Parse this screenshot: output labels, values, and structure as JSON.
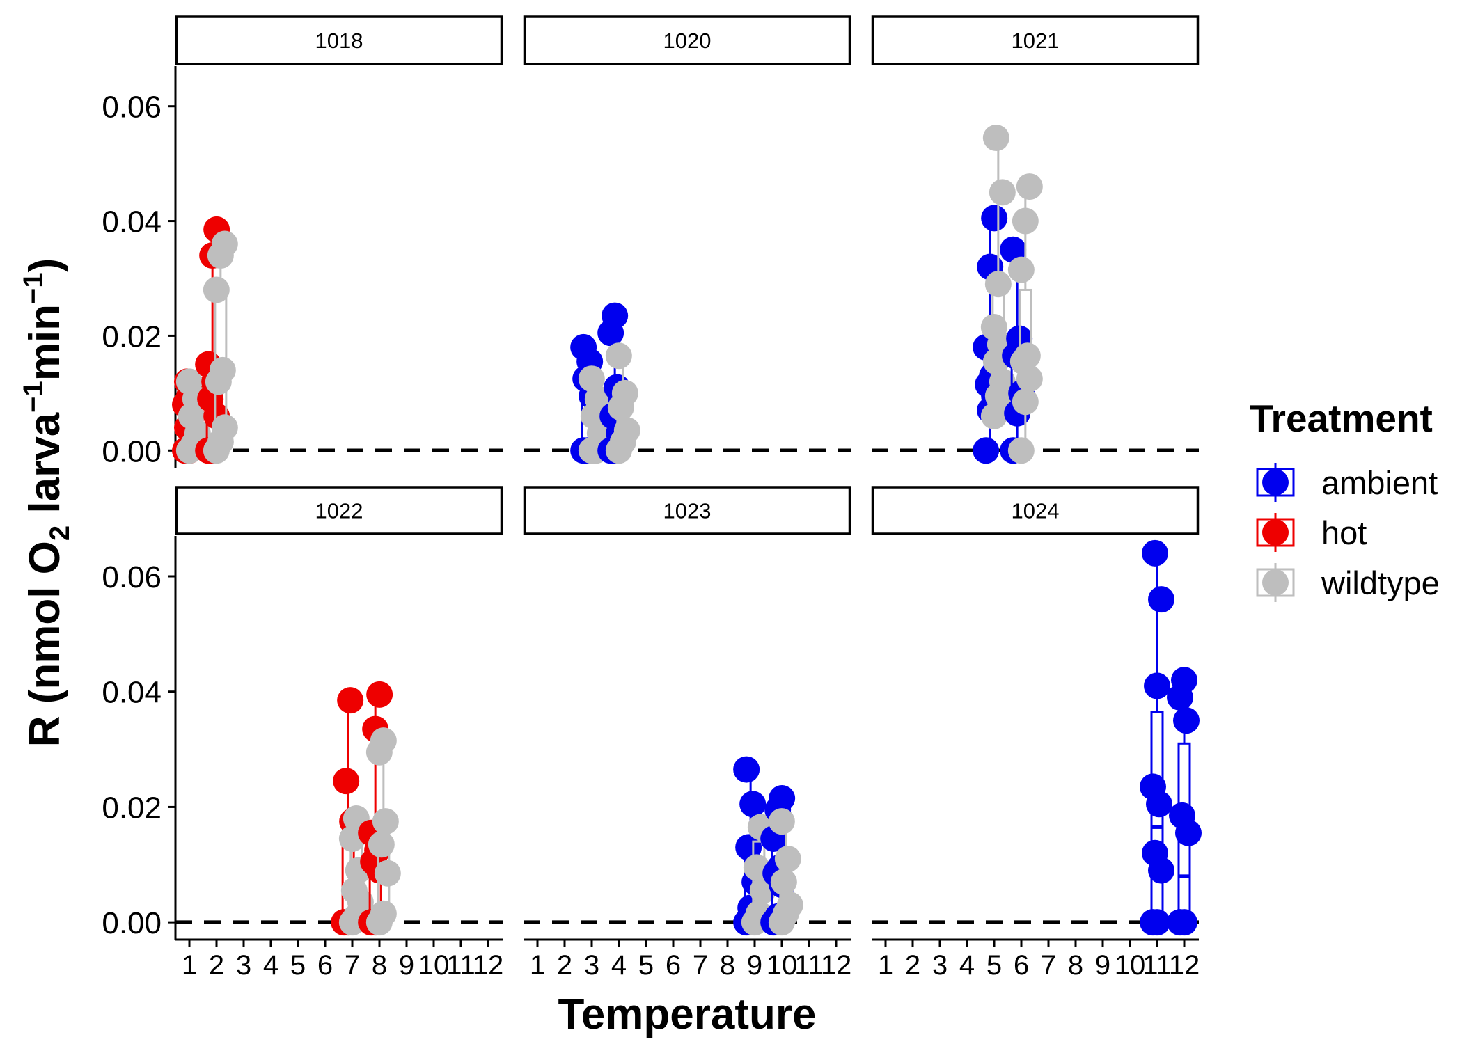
{
  "chart_data": {
    "type": "boxplot-with-points (faceted)",
    "xlabel": "Temperature",
    "ylabel_parts": [
      "R (nmol O",
      "2",
      " larva",
      "−1",
      "min",
      "−1",
      ")"
    ],
    "ylim": [
      -0.003,
      0.067
    ],
    "yticks": [
      0.0,
      0.02,
      0.04,
      0.06
    ],
    "ytick_labels": [
      "0.00",
      "0.02",
      "0.04",
      "0.06"
    ],
    "xticks": [
      1,
      2,
      3,
      4,
      5,
      6,
      7,
      8,
      9,
      10,
      11,
      12
    ],
    "xtick_labels": [
      "1",
      "2",
      "3",
      "4",
      "5",
      "6",
      "7",
      "8",
      "9",
      "10",
      "11",
      "12"
    ],
    "reference_line": {
      "y": 0.0,
      "style": "dashed"
    },
    "legend": {
      "title": "Treatment",
      "placement": "right",
      "entries": [
        {
          "name": "ambient",
          "color": "#0000ee"
        },
        {
          "name": "hot",
          "color": "#ee0000"
        },
        {
          "name": "wildtype",
          "color": "#bebebe"
        }
      ]
    },
    "panels": [
      {
        "id": "1018",
        "groups": [
          {
            "treatment": "hot",
            "x": 1,
            "box": [
              0.0,
              0.0015,
              0.006,
              0.011,
              0.012
            ],
            "points": [
              0.0,
              0.0,
              0.0015,
              0.004,
              0.006,
              0.008,
              0.0095,
              0.011,
              0.012
            ]
          },
          {
            "treatment": "wildtype",
            "x": 1.15,
            "box": [
              0.0,
              0.001,
              0.004,
              0.008,
              0.012
            ],
            "points": [
              0.0,
              0.001,
              0.003,
              0.006,
              0.009,
              0.012
            ]
          },
          {
            "treatment": "hot",
            "x": 1.85,
            "box": [
              0.0,
              0.002,
              0.008,
              0.014,
              0.0385
            ],
            "points": [
              0.0,
              0.0,
              0.006,
              0.009,
              0.012,
              0.015,
              0.034,
              0.0385
            ]
          },
          {
            "treatment": "wildtype",
            "x": 2.15,
            "box": [
              0.0,
              0.002,
              0.012,
              0.028,
              0.036
            ],
            "points": [
              0.0,
              0.0015,
              0.004,
              0.012,
              0.014,
              0.028,
              0.034,
              0.036
            ]
          }
        ]
      },
      {
        "id": "1020",
        "groups": [
          {
            "treatment": "ambient",
            "x": 2.85,
            "box": [
              0.0,
              0.0,
              0.007,
              0.0125,
              0.018
            ],
            "points": [
              0.0,
              0.0,
              0.0095,
              0.0125,
              0.0155,
              0.018
            ]
          },
          {
            "treatment": "wildtype",
            "x": 3.15,
            "box": [
              0.0,
              0.0,
              0.003,
              0.009,
              0.0125
            ],
            "points": [
              0.0,
              0.0,
              0.003,
              0.006,
              0.009,
              0.0125
            ]
          },
          {
            "treatment": "ambient",
            "x": 3.85,
            "box": [
              0.0,
              0.0,
              0.003,
              0.011,
              0.0235
            ],
            "points": [
              0.0,
              0.0,
              0.003,
              0.006,
              0.011,
              0.0205,
              0.0235
            ]
          },
          {
            "treatment": "wildtype",
            "x": 4.15,
            "box": [
              0.0,
              0.0015,
              0.005,
              0.01,
              0.0165
            ],
            "points": [
              0.0,
              0.0015,
              0.0035,
              0.0075,
              0.01,
              0.0165
            ]
          }
        ]
      },
      {
        "id": "1021",
        "groups": [
          {
            "treatment": "ambient",
            "x": 4.85,
            "box": [
              0.0,
              0.008,
              0.0115,
              0.018,
              0.0405
            ],
            "points": [
              0.0,
              0.007,
              0.0095,
              0.0115,
              0.013,
              0.018,
              0.032,
              0.0405
            ]
          },
          {
            "treatment": "wildtype",
            "x": 5.15,
            "box": [
              0.006,
              0.012,
              0.018,
              0.0285,
              0.0545
            ],
            "points": [
              0.006,
              0.0095,
              0.012,
              0.0155,
              0.0185,
              0.0215,
              0.029,
              0.045,
              0.0545
            ]
          },
          {
            "treatment": "ambient",
            "x": 5.85,
            "box": [
              0.0,
              0.007,
              0.01,
              0.017,
              0.035
            ],
            "points": [
              0.0,
              0.0065,
              0.01,
              0.0165,
              0.0195,
              0.035
            ]
          },
          {
            "treatment": "wildtype",
            "x": 6.15,
            "box": [
              0.0,
              0.012,
              0.0155,
              0.028,
              0.046
            ],
            "points": [
              0.0,
              0.0085,
              0.0125,
              0.0155,
              0.0165,
              0.0315,
              0.04,
              0.046
            ]
          }
        ]
      },
      {
        "id": "1022",
        "groups": [
          {
            "treatment": "hot",
            "x": 6.85,
            "box": [
              0.0,
              0.0,
              0.0,
              0.013,
              0.0385
            ],
            "points": [
              0.0,
              0.0,
              0.0175,
              0.0245,
              0.0385
            ]
          },
          {
            "treatment": "wildtype",
            "x": 7.15,
            "box": [
              0.0,
              0.001,
              0.0055,
              0.0145,
              0.018
            ],
            "points": [
              0.0,
              0.001,
              0.0035,
              0.0055,
              0.009,
              0.0145,
              0.018
            ]
          },
          {
            "treatment": "hot",
            "x": 7.85,
            "box": [
              0.0,
              0.001,
              0.009,
              0.0155,
              0.0395
            ],
            "points": [
              0.0,
              0.0,
              0.009,
              0.0105,
              0.0125,
              0.0155,
              0.0335,
              0.0395
            ]
          },
          {
            "treatment": "wildtype",
            "x": 8.15,
            "box": [
              0.0,
              0.0015,
              0.0085,
              0.0155,
              0.0315
            ],
            "points": [
              0.0,
              0.0015,
              0.0085,
              0.0135,
              0.0175,
              0.0295,
              0.0315
            ]
          }
        ]
      },
      {
        "id": "1023",
        "groups": [
          {
            "treatment": "ambient",
            "x": 8.85,
            "box": [
              0.0,
              0.0025,
              0.007,
              0.013,
              0.0265
            ],
            "points": [
              0.0,
              0.0025,
              0.007,
              0.013,
              0.0205,
              0.0265
            ]
          },
          {
            "treatment": "wildtype",
            "x": 9.15,
            "box": [
              0.0,
              0.0015,
              0.0095,
              0.014,
              0.0165
            ],
            "points": [
              0.0,
              0.0015,
              0.0055,
              0.0095,
              0.0165
            ]
          },
          {
            "treatment": "ambient",
            "x": 9.85,
            "box": [
              0.0,
              0.001,
              0.0085,
              0.0145,
              0.0215
            ],
            "points": [
              0.0,
              0.001,
              0.0065,
              0.0085,
              0.0095,
              0.0145,
              0.0195,
              0.0215
            ]
          },
          {
            "treatment": "wildtype",
            "x": 10.15,
            "box": [
              0.0,
              0.0015,
              0.0045,
              0.0095,
              0.0175
            ],
            "points": [
              0.0,
              0.0015,
              0.003,
              0.007,
              0.011,
              0.0175
            ]
          }
        ]
      },
      {
        "id": "1024",
        "groups": [
          {
            "treatment": "ambient",
            "x": 11,
            "box": [
              0.0,
              0.0,
              0.0165,
              0.0365,
              0.064
            ],
            "points": [
              0.0,
              0.0,
              0.009,
              0.012,
              0.0205,
              0.0235,
              0.041,
              0.056,
              0.064
            ]
          },
          {
            "treatment": "ambient",
            "x": 12,
            "box": [
              0.0,
              0.0,
              0.008,
              0.031,
              0.042
            ],
            "points": [
              0.0,
              0.0,
              0.0155,
              0.0185,
              0.035,
              0.039,
              0.042
            ]
          }
        ]
      }
    ]
  }
}
